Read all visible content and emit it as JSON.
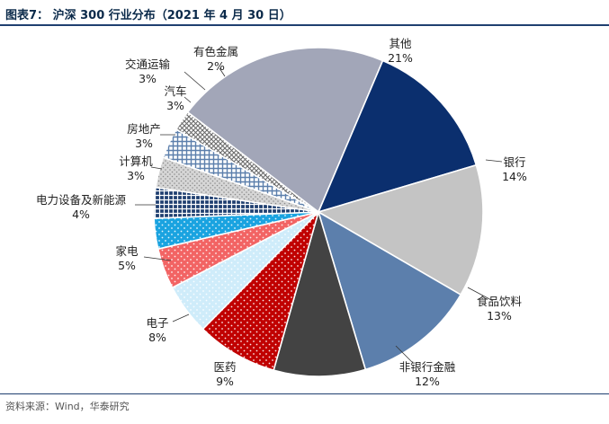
{
  "header": {
    "title": "图表7： 沪深 300 行业分布（2021 年 4 月 30 日）"
  },
  "footer": {
    "source": "资料来源：Wind，华泰研究"
  },
  "colors": {
    "rule": "#1f3f70",
    "title": "#0b2a4a"
  },
  "chart_data": {
    "type": "pie",
    "title": "沪深 300 行业分布（2021 年 4 月 30 日）",
    "slices": [
      {
        "label": "其他",
        "value": 21,
        "display": "21%",
        "color": "#a2a6b8",
        "pattern": "solid"
      },
      {
        "label": "银行",
        "value": 14,
        "display": "14%",
        "color": "#0b2f6e",
        "pattern": "solid"
      },
      {
        "label": "食品饮料",
        "value": 13,
        "display": "13%",
        "color": "#c4c4c4",
        "pattern": "solid"
      },
      {
        "label": "非银行金融",
        "value": 12,
        "display": "12%",
        "color": "#5c7fac",
        "pattern": "solid"
      },
      {
        "label": "医药",
        "value": 9,
        "display": "9%",
        "color": "#434343",
        "pattern": "solid"
      },
      {
        "label": "电子",
        "value": 8,
        "display": "8%",
        "color": "#c00000",
        "pattern": "dots-white"
      },
      {
        "label": "家电",
        "value": 5,
        "display": "5%",
        "color": "#cfecfa",
        "pattern": "dots-white"
      },
      {
        "label": "电力设备及新能源",
        "value": 4,
        "display": "4%",
        "color": "#f26464",
        "pattern": "dots-white"
      },
      {
        "label": "计算机",
        "value": 3,
        "display": "3%",
        "color": "#1aa3e0",
        "pattern": "dots-white"
      },
      {
        "label": "房地产",
        "value": 3,
        "display": "3%",
        "color": "#1f3f70",
        "pattern": "grid"
      },
      {
        "label": "汽车",
        "value": 3,
        "display": "3%",
        "color": "#d6d6d6",
        "pattern": "dots-dark"
      },
      {
        "label": "交通运输",
        "value": 3,
        "display": "3%",
        "color": "#5c7fac",
        "pattern": "grid-light"
      },
      {
        "label": "有色金属",
        "value": 2,
        "display": "2%",
        "color": "#8a8a8a",
        "pattern": "crosshatch"
      }
    ]
  }
}
